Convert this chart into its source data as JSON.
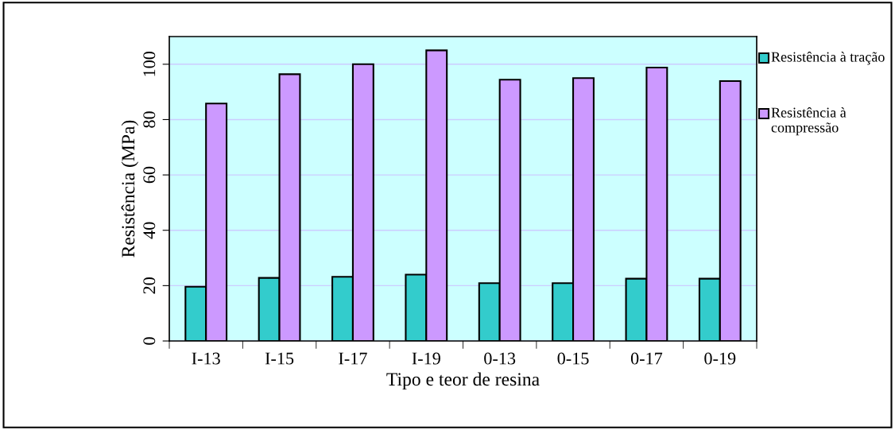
{
  "chart_data": {
    "type": "bar",
    "xlabel": "Tipo e teor de resina",
    "ylabel": "Resistência (MPa)",
    "categories": [
      "I-13",
      "I-15",
      "I-17",
      "I-19",
      "0-13",
      "0-15",
      "0-17",
      "0-19"
    ],
    "series": [
      {
        "name": "Resistência à tração",
        "color": "#33cccc",
        "values": [
          19.6,
          22.8,
          23.2,
          24.0,
          20.9,
          20.9,
          22.5,
          22.5
        ]
      },
      {
        "name": "Resistência à compressão",
        "color": "#cc99ff",
        "values": [
          85.8,
          96.4,
          100,
          105.0,
          94.4,
          95.0,
          98.8,
          93.9
        ]
      }
    ],
    "ylim": [
      0,
      110
    ],
    "yticks": [
      0,
      20,
      40,
      60,
      80,
      100
    ],
    "grid": "y",
    "legend": "right"
  }
}
